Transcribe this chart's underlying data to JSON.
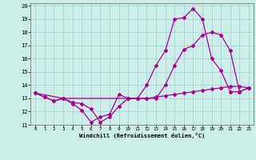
{
  "bg_color": "#cceee8",
  "grid_color": "#aacccc",
  "line_color": "#aa0099",
  "xlim": [
    -0.5,
    23.5
  ],
  "ylim": [
    11,
    20.2
  ],
  "xticks": [
    0,
    1,
    2,
    3,
    4,
    5,
    6,
    7,
    8,
    9,
    10,
    11,
    12,
    13,
    14,
    15,
    16,
    17,
    18,
    19,
    20,
    21,
    22,
    23
  ],
  "yticks": [
    11,
    12,
    13,
    14,
    15,
    16,
    17,
    18,
    19,
    20
  ],
  "xlabel": "Windchill (Refroidissement éolien,°C)",
  "line1_x": [
    0,
    1,
    2,
    3,
    4,
    5,
    6,
    7,
    8,
    9,
    10,
    11,
    12,
    13,
    14,
    15,
    16,
    17,
    18,
    19,
    20,
    21,
    22,
    23
  ],
  "line1_y": [
    13.4,
    13.1,
    12.8,
    13.0,
    12.6,
    12.1,
    11.2,
    11.6,
    11.8,
    13.3,
    13.0,
    13.0,
    14.0,
    15.5,
    16.6,
    19.0,
    19.1,
    19.8,
    19.0,
    16.0,
    15.1,
    13.5,
    13.5,
    13.8
  ],
  "line2_x": [
    0,
    1,
    2,
    3,
    4,
    5,
    6,
    7,
    8,
    9,
    10,
    11,
    12,
    13,
    14,
    15,
    16,
    17,
    18,
    19,
    20,
    21,
    22,
    23
  ],
  "line2_y": [
    13.4,
    13.1,
    12.8,
    13.0,
    12.7,
    12.6,
    12.2,
    11.2,
    11.6,
    12.4,
    13.0,
    13.0,
    13.0,
    13.0,
    14.0,
    15.5,
    16.7,
    17.0,
    17.8,
    18.0,
    17.8,
    16.6,
    13.5,
    13.8
  ],
  "line3_x": [
    0,
    3,
    10,
    11,
    12,
    13,
    14,
    15,
    16,
    17,
    18,
    19,
    20,
    21,
    22,
    23
  ],
  "line3_y": [
    13.4,
    13.0,
    13.0,
    13.0,
    13.0,
    13.1,
    13.2,
    13.3,
    13.4,
    13.5,
    13.6,
    13.7,
    13.8,
    13.9,
    13.9,
    13.8
  ]
}
